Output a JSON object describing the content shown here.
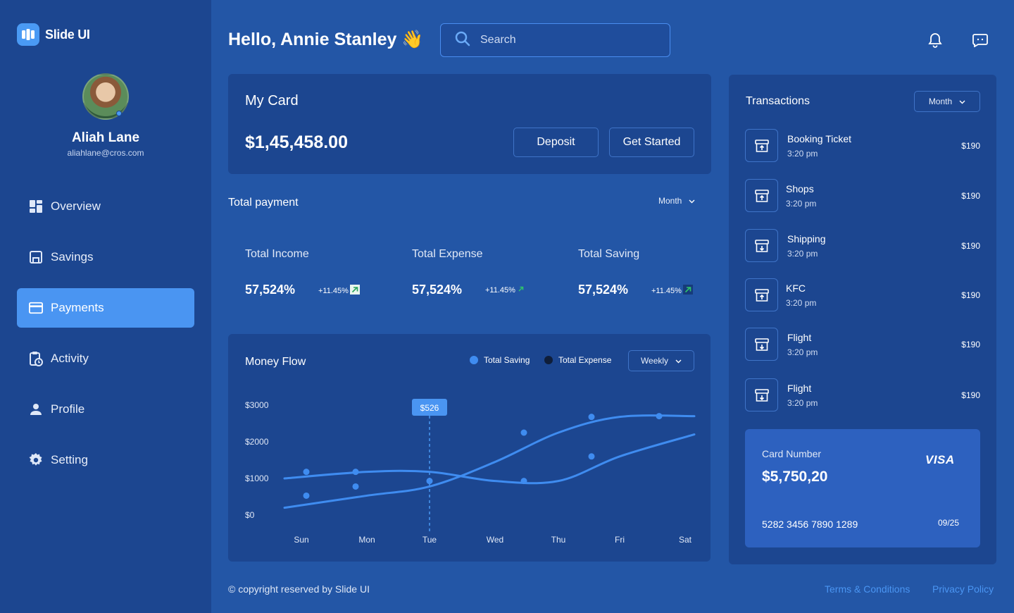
{
  "brand": {
    "name": "Slide UI"
  },
  "user": {
    "name": "Aliah Lane",
    "email": "aliahlane@cros.com"
  },
  "nav": {
    "items": [
      {
        "label": "Overview"
      },
      {
        "label": "Savings"
      },
      {
        "label": "Payments"
      },
      {
        "label": "Activity"
      },
      {
        "label": "Profile"
      },
      {
        "label": "Setting"
      }
    ],
    "active": "Payments"
  },
  "header": {
    "greeting": "Hello, Annie Stanley",
    "wave": "👋",
    "search_placeholder": "Search"
  },
  "my_card": {
    "title": "My Card",
    "balance": "$1,45,458.00",
    "deposit_label": "Deposit",
    "get_started_label": "Get Started"
  },
  "total_payment": {
    "title": "Total payment",
    "period": "Month",
    "stats": [
      {
        "label": "Total Income",
        "value": "57,524%",
        "change": "+11.45%"
      },
      {
        "label": "Total Expense",
        "value": "57,524%",
        "change": "+11.45%"
      },
      {
        "label": "Total Saving",
        "value": "57,524%",
        "change": "+11.45%"
      }
    ]
  },
  "money_flow": {
    "title": "Money Flow",
    "legend_saving": "Total Saving",
    "legend_expense": "Total Expense",
    "period": "Weekly",
    "tooltip": "$526"
  },
  "chart_data": {
    "type": "line",
    "title": "Money Flow",
    "categories": [
      "Sun",
      "Mon",
      "Tue",
      "Wed",
      "Thu",
      "Fri",
      "Sat"
    ],
    "y_ticks": [
      "$3000",
      "$2000",
      "$1000",
      "$0"
    ],
    "ylim": [
      0,
      3000
    ],
    "series": [
      {
        "name": "Total Saving",
        "values": [
          200,
          530,
          780,
          1450,
          2250,
          2680,
          2700
        ]
      },
      {
        "name": "Total Expense",
        "values": [
          1000,
          1180,
          1180,
          930,
          930,
          1600,
          2200
        ]
      }
    ],
    "highlight": {
      "category": "Tue",
      "label": "$526"
    },
    "colors": {
      "saving": "#3f8cf0",
      "expense": "#3f8cf0"
    }
  },
  "transactions": {
    "title": "Transactions",
    "period": "Month",
    "items": [
      {
        "name": "Booking Ticket",
        "time": "3:20 pm",
        "amount": "$190",
        "icon": "archive-up-icon"
      },
      {
        "name": "Shops",
        "time": "3:20 pm",
        "amount": "$190",
        "icon": "archive-up-icon"
      },
      {
        "name": "Shipping",
        "time": "3:20 pm",
        "amount": "$190",
        "icon": "archive-down-icon"
      },
      {
        "name": "KFC",
        "time": "3:20 pm",
        "amount": "$190",
        "icon": "archive-up-icon"
      },
      {
        "name": "Flight",
        "time": "3:20 pm",
        "amount": "$190",
        "icon": "archive-down-icon"
      },
      {
        "name": "Flight",
        "time": "3:20 pm",
        "amount": "$190",
        "icon": "archive-down-icon"
      }
    ]
  },
  "visa_card": {
    "label": "Card Number",
    "amount": "$5,750,20",
    "brand": "VISA",
    "number": "5282 3456 7890 1289",
    "expiry": "09/25"
  },
  "footer": {
    "copyright": "© copyright reserved by Slide UI",
    "terms": "Terms & Conditions",
    "privacy": "Privacy Policy"
  }
}
